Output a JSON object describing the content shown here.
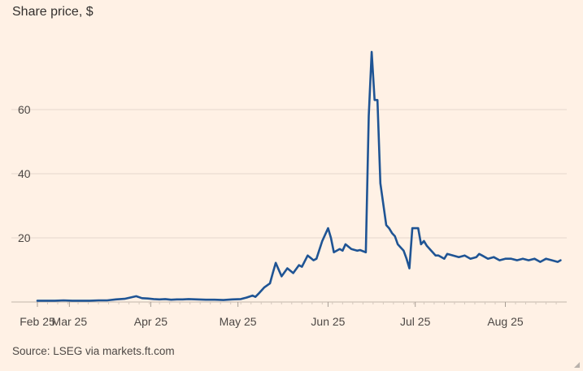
{
  "chart_data": {
    "type": "line",
    "title": "Share price, $",
    "source": "Source: LSEG via markets.ft.com",
    "xlabel": "",
    "ylabel": "",
    "ylim": [
      0,
      80
    ],
    "yticks": [
      20,
      40,
      60
    ],
    "xticks": [
      {
        "label": "Feb 25",
        "day": 0
      },
      {
        "label": "Mar 25",
        "day": 11
      },
      {
        "label": "Apr 25",
        "day": 39
      },
      {
        "label": "May 25",
        "day": 69
      },
      {
        "label": "Jun 25",
        "day": 100
      },
      {
        "label": "Jul 25",
        "day": 130
      },
      {
        "label": "Aug 25",
        "day": 161
      }
    ],
    "x_range": [
      0,
      181
    ],
    "series": [
      {
        "name": "Share price",
        "color": "#1f5494",
        "x": [
          0,
          3,
          6,
          9,
          12,
          15,
          18,
          21,
          24,
          27,
          30,
          32,
          34,
          36,
          38,
          40,
          42,
          44,
          46,
          48,
          50,
          52,
          55,
          58,
          61,
          64,
          67,
          70,
          72,
          74,
          75,
          76,
          78,
          80,
          81,
          82,
          84,
          86,
          88,
          90,
          91,
          93,
          95,
          96,
          98,
          100,
          101,
          102,
          104,
          105,
          106,
          108,
          110,
          111,
          113,
          114,
          115,
          116,
          117,
          118,
          120,
          121,
          122,
          123,
          124,
          125,
          126,
          127,
          128,
          129,
          131,
          132,
          133,
          134,
          136,
          137,
          138,
          140,
          141,
          143,
          145,
          147,
          149,
          151,
          152,
          153,
          155,
          157,
          159,
          161,
          163,
          165,
          167,
          169,
          171,
          173,
          175,
          177,
          179,
          180
        ],
        "values": [
          0.4,
          0.4,
          0.4,
          0.5,
          0.4,
          0.4,
          0.4,
          0.5,
          0.5,
          0.8,
          1.0,
          1.4,
          1.8,
          1.2,
          1.1,
          0.9,
          0.8,
          0.9,
          0.7,
          0.8,
          0.8,
          0.9,
          0.8,
          0.7,
          0.7,
          0.6,
          0.8,
          0.9,
          1.4,
          2.0,
          1.6,
          2.5,
          4.5,
          5.8,
          9.0,
          12.2,
          8.0,
          10.5,
          9.0,
          11.5,
          11.0,
          14.5,
          13.0,
          13.5,
          19.0,
          23.0,
          20.0,
          15.5,
          16.5,
          16.0,
          18.0,
          16.5,
          16.0,
          16.2,
          15.5,
          58.0,
          78.0,
          63.0,
          63.0,
          37.0,
          24.0,
          23.0,
          21.5,
          20.5,
          18.0,
          17.0,
          16.0,
          13.5,
          10.5,
          23.0,
          23.0,
          18.0,
          19.0,
          17.5,
          15.5,
          14.5,
          14.5,
          13.5,
          15.0,
          14.5,
          14.0,
          14.5,
          13.5,
          14.0,
          15.0,
          14.5,
          13.5,
          14.0,
          13.0,
          13.5,
          13.5,
          13.0,
          13.5,
          13.0,
          13.5,
          12.5,
          13.5,
          13.0,
          12.5,
          13.0
        ]
      }
    ]
  }
}
